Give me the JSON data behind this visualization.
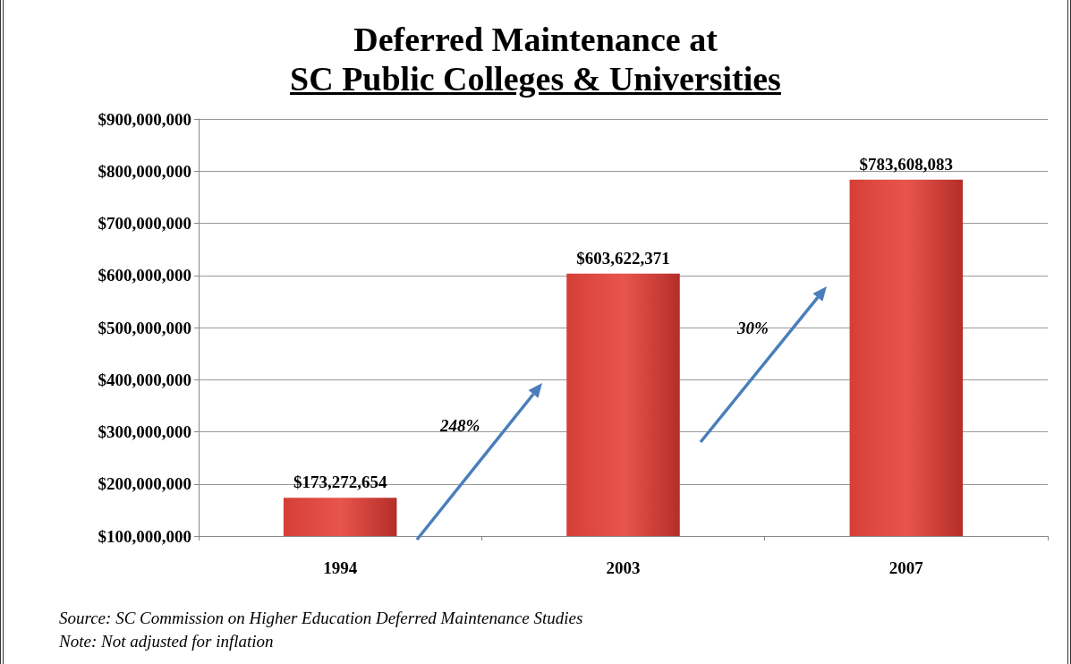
{
  "chart_data": {
    "type": "bar",
    "title": "Deferred Maintenance at\nSC Public Colleges & Universities",
    "categories": [
      "1994",
      "2003",
      "2007"
    ],
    "values": [
      173272654,
      603622371,
      783608083
    ],
    "value_labels": [
      "$173,272,654",
      "$603,622,371",
      "$783,608,083"
    ],
    "color": "#d63f38",
    "ylim": [
      100000000,
      900000000
    ],
    "yticks": [
      {
        "value": 100000000,
        "label": "$100,000,000"
      },
      {
        "value": 200000000,
        "label": "$200,000,000"
      },
      {
        "value": 300000000,
        "label": "$300,000,000"
      },
      {
        "value": 400000000,
        "label": "$400,000,000"
      },
      {
        "value": 500000000,
        "label": "$500,000,000"
      },
      {
        "value": 600000000,
        "label": "$600,000,000"
      },
      {
        "value": 700000000,
        "label": "$700,000,000"
      },
      {
        "value": 800000000,
        "label": "$800,000,000"
      },
      {
        "value": 900000000,
        "label": "$900,000,000"
      }
    ],
    "grid": "y",
    "annotations": [
      "248%",
      "30%",
      "Source:  SC Commission on Higher Education Deferred Maintenance Studies",
      "Note: Not adjusted for inflation"
    ]
  }
}
